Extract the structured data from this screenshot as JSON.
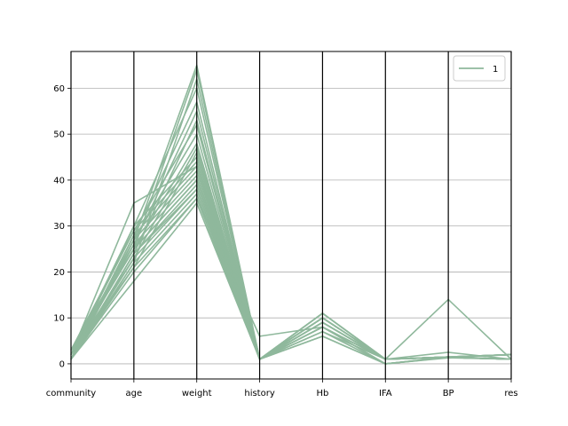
{
  "chart_data": {
    "type": "parallel_coordinates",
    "axes": [
      "community",
      "age",
      "weight",
      "history",
      "Hb",
      "IFA",
      "BP",
      "res"
    ],
    "ylim": [
      -3.3,
      68
    ],
    "yticks": [
      0,
      10,
      20,
      30,
      40,
      50,
      60
    ],
    "grid": true,
    "legend": {
      "position": "top-right",
      "entries": [
        {
          "label": "1",
          "color": "#8fb89c"
        }
      ]
    },
    "series_color": "#8fb89c",
    "lines": [
      [
        1,
        18,
        35,
        1,
        6,
        0,
        1.4,
        1
      ],
      [
        1,
        20,
        36,
        1,
        6,
        0,
        1.3,
        1
      ],
      [
        1,
        22,
        37,
        1,
        7,
        0,
        1.4,
        1
      ],
      [
        2,
        23,
        38,
        1,
        7,
        1,
        1.5,
        1
      ],
      [
        1,
        24,
        39,
        1,
        8,
        1,
        1.4,
        1
      ],
      [
        3,
        25,
        40,
        1,
        8,
        1,
        1.5,
        2
      ],
      [
        1,
        26,
        41,
        1,
        8,
        1,
        1.4,
        1
      ],
      [
        2,
        27,
        42,
        1,
        9,
        1,
        1.5,
        1
      ],
      [
        1,
        28,
        43,
        1,
        9,
        1,
        1.4,
        2
      ],
      [
        3,
        29,
        44,
        1,
        9,
        1,
        1.5,
        1
      ],
      [
        1,
        30,
        45,
        1,
        10,
        1,
        1.4,
        1
      ],
      [
        2,
        21,
        46,
        1,
        10,
        1,
        1.5,
        2
      ],
      [
        1,
        23,
        47,
        1,
        10,
        1,
        1.4,
        1
      ],
      [
        3,
        25,
        48,
        1,
        11,
        1,
        1.5,
        1
      ],
      [
        1,
        27,
        50,
        1,
        11,
        1,
        1.4,
        2
      ],
      [
        2,
        29,
        52,
        1,
        11,
        1,
        1.5,
        1
      ],
      [
        1,
        24,
        53,
        1,
        9,
        1,
        1.4,
        1
      ],
      [
        3,
        26,
        55,
        1,
        10,
        1,
        1.5,
        2
      ],
      [
        1,
        28,
        57,
        1,
        10,
        1,
        2.5,
        1
      ],
      [
        2,
        30,
        60,
        1,
        11,
        1,
        1.5,
        2
      ],
      [
        1,
        22,
        62,
        1,
        9,
        1,
        1.4,
        1
      ],
      [
        3,
        25,
        64,
        1,
        10,
        1,
        1.5,
        2
      ],
      [
        1,
        27,
        65,
        1,
        11,
        1,
        1.4,
        1
      ],
      [
        2,
        35,
        43,
        1,
        8,
        0,
        1.5,
        1
      ],
      [
        1,
        21,
        36,
        6,
        8,
        0,
        1.4,
        1
      ],
      [
        2,
        25,
        40,
        1,
        10,
        1,
        14,
        1
      ],
      [
        1,
        24,
        38,
        1,
        9,
        1,
        1.5,
        2
      ]
    ]
  }
}
